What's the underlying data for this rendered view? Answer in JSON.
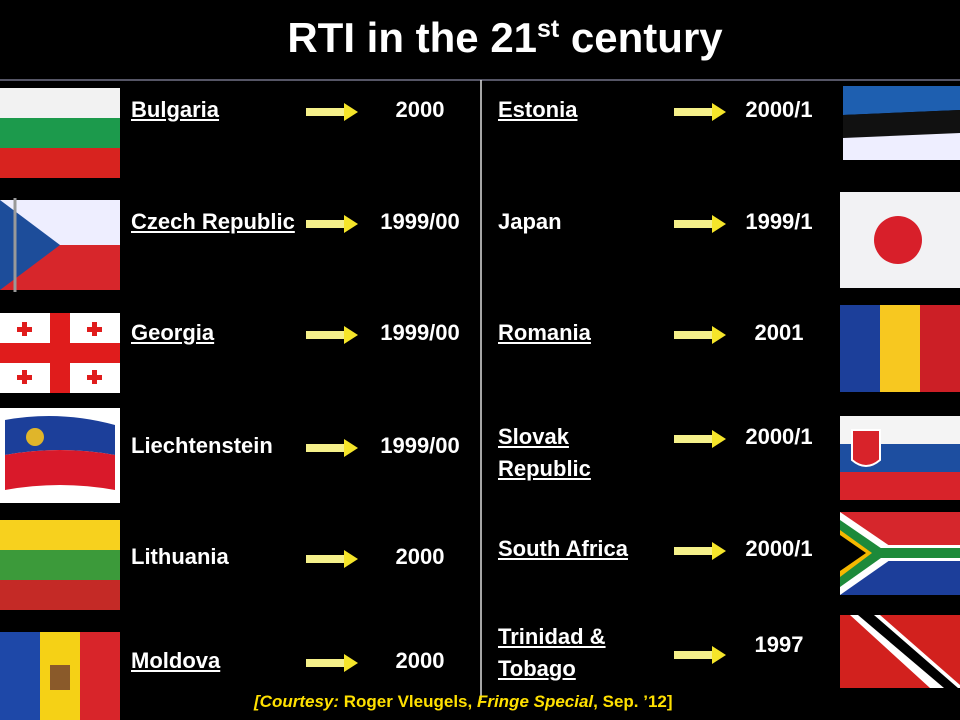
{
  "title": {
    "main": "RTI in the 21",
    "sup": "st",
    "rest": " century"
  },
  "left": [
    {
      "country": "Bulgaria",
      "year": "2000",
      "underlined": true
    },
    {
      "country": "Czech Republic",
      "year": "1999/00",
      "underlined": true
    },
    {
      "country": "Georgia",
      "year": "1999/00",
      "underlined": true
    },
    {
      "country": "Liechtenstein",
      "year": "1999/00",
      "underlined": false
    },
    {
      "country": "Lithuania",
      "year": "2000",
      "underlined": false
    },
    {
      "country": "Moldova",
      "year": "2000",
      "underlined": true
    }
  ],
  "right": [
    {
      "country": "Estonia",
      "year": "2000/1",
      "underlined": true
    },
    {
      "country": "Japan",
      "year": "1999/1",
      "underlined": false
    },
    {
      "country": "Romania",
      "year": "2001",
      "underlined": true
    },
    {
      "country": "Slovak Republic",
      "year": "2000/1",
      "underlined": true
    },
    {
      "country": "South Africa",
      "year": "2000/1",
      "underlined": true
    },
    {
      "country": "Trinidad & Tobago",
      "year": "1997",
      "underlined": true
    }
  ],
  "footer": {
    "open": "[Courtesy:",
    "author": " Roger Vleugels, ",
    "source": "Fringe Special",
    "date": ", Sep. ’12]"
  }
}
